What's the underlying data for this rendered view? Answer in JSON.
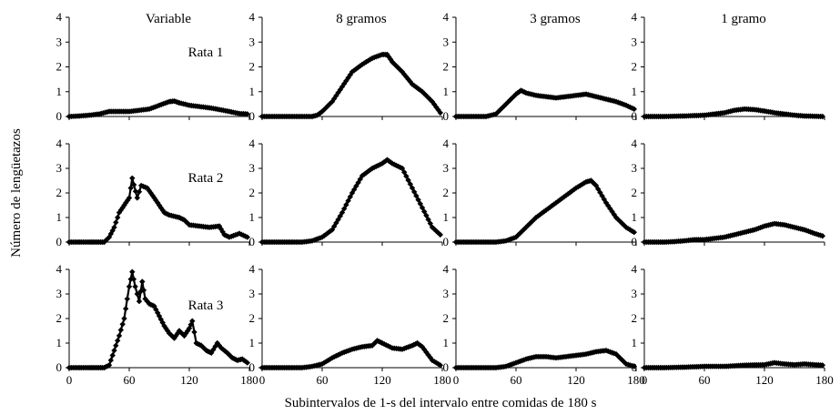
{
  "figure": {
    "ylabel": "Número de lengüetazos",
    "xlabel": "Subintervalos de 1-s del  intervalo entre comidas de 180 s",
    "columns": [
      "Variable",
      "8 gramos",
      "3 gramos",
      "1 gramo"
    ],
    "rows": [
      "Rata 1",
      "Rata 2",
      "Rata 3"
    ]
  },
  "chart_data": {
    "type": "line",
    "layout": "small-multiples 3 rows x 4 columns",
    "x_range": [
      0,
      180
    ],
    "y_range": [
      0,
      4
    ],
    "x_ticks": [
      "0",
      "60",
      "120",
      "180"
    ],
    "y_ticks": [
      "0",
      "1",
      "2",
      "3",
      "4"
    ],
    "marker": "diamond",
    "color": "#000000",
    "panels": [
      {
        "row": "Rata 1",
        "column": "Variable",
        "points": [
          [
            0,
            0
          ],
          [
            10,
            0.02
          ],
          [
            20,
            0.05
          ],
          [
            30,
            0.1
          ],
          [
            40,
            0.2
          ],
          [
            50,
            0.2
          ],
          [
            60,
            0.2
          ],
          [
            70,
            0.25
          ],
          [
            80,
            0.3
          ],
          [
            90,
            0.45
          ],
          [
            100,
            0.6
          ],
          [
            105,
            0.62
          ],
          [
            110,
            0.55
          ],
          [
            120,
            0.45
          ],
          [
            130,
            0.4
          ],
          [
            140,
            0.35
          ],
          [
            150,
            0.28
          ],
          [
            160,
            0.2
          ],
          [
            170,
            0.12
          ],
          [
            178,
            0.1
          ]
        ]
      },
      {
        "row": "Rata 1",
        "column": "8 gramos",
        "points": [
          [
            0,
            0
          ],
          [
            40,
            0
          ],
          [
            50,
            0
          ],
          [
            55,
            0.05
          ],
          [
            60,
            0.2
          ],
          [
            70,
            0.6
          ],
          [
            80,
            1.2
          ],
          [
            90,
            1.8
          ],
          [
            100,
            2.1
          ],
          [
            110,
            2.35
          ],
          [
            120,
            2.5
          ],
          [
            125,
            2.5
          ],
          [
            130,
            2.2
          ],
          [
            140,
            1.8
          ],
          [
            150,
            1.3
          ],
          [
            160,
            1.0
          ],
          [
            170,
            0.6
          ],
          [
            178,
            0.15
          ]
        ]
      },
      {
        "row": "Rata 1",
        "column": "3 gramos",
        "points": [
          [
            0,
            0
          ],
          [
            30,
            0
          ],
          [
            40,
            0.1
          ],
          [
            50,
            0.5
          ],
          [
            60,
            0.9
          ],
          [
            65,
            1.05
          ],
          [
            70,
            0.95
          ],
          [
            80,
            0.85
          ],
          [
            90,
            0.8
          ],
          [
            100,
            0.75
          ],
          [
            110,
            0.8
          ],
          [
            120,
            0.85
          ],
          [
            130,
            0.9
          ],
          [
            140,
            0.8
          ],
          [
            150,
            0.7
          ],
          [
            160,
            0.6
          ],
          [
            170,
            0.45
          ],
          [
            178,
            0.3
          ]
        ]
      },
      {
        "row": "Rata 1",
        "column": "1 gramo",
        "points": [
          [
            0,
            0
          ],
          [
            20,
            0
          ],
          [
            40,
            0.02
          ],
          [
            60,
            0.05
          ],
          [
            80,
            0.15
          ],
          [
            90,
            0.25
          ],
          [
            100,
            0.3
          ],
          [
            110,
            0.28
          ],
          [
            120,
            0.22
          ],
          [
            130,
            0.15
          ],
          [
            140,
            0.1
          ],
          [
            150,
            0.05
          ],
          [
            160,
            0.02
          ],
          [
            178,
            0
          ]
        ]
      },
      {
        "row": "Rata 2",
        "column": "Variable",
        "points": [
          [
            0,
            0
          ],
          [
            20,
            0
          ],
          [
            35,
            0
          ],
          [
            40,
            0.2
          ],
          [
            45,
            0.6
          ],
          [
            50,
            1.2
          ],
          [
            55,
            1.5
          ],
          [
            60,
            1.8
          ],
          [
            63,
            2.6
          ],
          [
            68,
            1.8
          ],
          [
            72,
            2.3
          ],
          [
            78,
            2.2
          ],
          [
            85,
            1.8
          ],
          [
            90,
            1.5
          ],
          [
            95,
            1.2
          ],
          [
            100,
            1.1
          ],
          [
            110,
            1.0
          ],
          [
            115,
            0.9
          ],
          [
            120,
            0.7
          ],
          [
            130,
            0.65
          ],
          [
            140,
            0.6
          ],
          [
            150,
            0.65
          ],
          [
            155,
            0.3
          ],
          [
            160,
            0.2
          ],
          [
            170,
            0.35
          ],
          [
            178,
            0.2
          ]
        ]
      },
      {
        "row": "Rata 2",
        "column": "8 gramos",
        "points": [
          [
            0,
            0
          ],
          [
            40,
            0
          ],
          [
            50,
            0.05
          ],
          [
            60,
            0.2
          ],
          [
            70,
            0.5
          ],
          [
            80,
            1.2
          ],
          [
            90,
            2.0
          ],
          [
            100,
            2.7
          ],
          [
            110,
            3.0
          ],
          [
            120,
            3.2
          ],
          [
            125,
            3.35
          ],
          [
            130,
            3.2
          ],
          [
            140,
            3.0
          ],
          [
            150,
            2.2
          ],
          [
            160,
            1.4
          ],
          [
            170,
            0.6
          ],
          [
            178,
            0.3
          ]
        ]
      },
      {
        "row": "Rata 2",
        "column": "3 gramos",
        "points": [
          [
            0,
            0
          ],
          [
            40,
            0
          ],
          [
            50,
            0.05
          ],
          [
            60,
            0.2
          ],
          [
            70,
            0.6
          ],
          [
            80,
            1.0
          ],
          [
            90,
            1.3
          ],
          [
            100,
            1.6
          ],
          [
            110,
            1.9
          ],
          [
            120,
            2.2
          ],
          [
            130,
            2.45
          ],
          [
            135,
            2.5
          ],
          [
            140,
            2.3
          ],
          [
            150,
            1.6
          ],
          [
            160,
            1.0
          ],
          [
            170,
            0.6
          ],
          [
            178,
            0.4
          ]
        ]
      },
      {
        "row": "Rata 2",
        "column": "1 gramo",
        "points": [
          [
            0,
            0
          ],
          [
            20,
            0
          ],
          [
            30,
            0.02
          ],
          [
            40,
            0.05
          ],
          [
            50,
            0.1
          ],
          [
            60,
            0.1
          ],
          [
            70,
            0.15
          ],
          [
            80,
            0.2
          ],
          [
            90,
            0.3
          ],
          [
            100,
            0.4
          ],
          [
            110,
            0.5
          ],
          [
            120,
            0.65
          ],
          [
            130,
            0.75
          ],
          [
            140,
            0.7
          ],
          [
            150,
            0.6
          ],
          [
            160,
            0.5
          ],
          [
            170,
            0.35
          ],
          [
            178,
            0.25
          ]
        ]
      },
      {
        "row": "Rata 3",
        "column": "Variable",
        "points": [
          [
            0,
            0
          ],
          [
            20,
            0
          ],
          [
            35,
            0
          ],
          [
            40,
            0.1
          ],
          [
            45,
            0.7
          ],
          [
            50,
            1.3
          ],
          [
            55,
            2.0
          ],
          [
            58,
            2.8
          ],
          [
            60,
            3.3
          ],
          [
            63,
            3.9
          ],
          [
            66,
            3.3
          ],
          [
            70,
            2.7
          ],
          [
            73,
            3.5
          ],
          [
            76,
            2.8
          ],
          [
            80,
            2.6
          ],
          [
            85,
            2.5
          ],
          [
            90,
            2.1
          ],
          [
            95,
            1.7
          ],
          [
            100,
            1.4
          ],
          [
            105,
            1.2
          ],
          [
            110,
            1.5
          ],
          [
            115,
            1.3
          ],
          [
            120,
            1.6
          ],
          [
            123,
            1.9
          ],
          [
            127,
            1.0
          ],
          [
            132,
            0.9
          ],
          [
            137,
            0.7
          ],
          [
            142,
            0.6
          ],
          [
            148,
            1.0
          ],
          [
            152,
            0.8
          ],
          [
            158,
            0.6
          ],
          [
            163,
            0.4
          ],
          [
            168,
            0.3
          ],
          [
            173,
            0.35
          ],
          [
            178,
            0.2
          ]
        ]
      },
      {
        "row": "Rata 3",
        "column": "8 gramos",
        "points": [
          [
            0,
            0
          ],
          [
            40,
            0
          ],
          [
            50,
            0.05
          ],
          [
            60,
            0.15
          ],
          [
            70,
            0.4
          ],
          [
            80,
            0.6
          ],
          [
            90,
            0.75
          ],
          [
            100,
            0.85
          ],
          [
            110,
            0.9
          ],
          [
            115,
            1.1
          ],
          [
            120,
            1.0
          ],
          [
            130,
            0.8
          ],
          [
            140,
            0.75
          ],
          [
            150,
            0.9
          ],
          [
            155,
            1.0
          ],
          [
            160,
            0.85
          ],
          [
            170,
            0.3
          ],
          [
            178,
            0.1
          ]
        ]
      },
      {
        "row": "Rata 3",
        "column": "3 gramos",
        "points": [
          [
            0,
            0
          ],
          [
            40,
            0
          ],
          [
            50,
            0.05
          ],
          [
            60,
            0.2
          ],
          [
            70,
            0.35
          ],
          [
            80,
            0.45
          ],
          [
            90,
            0.45
          ],
          [
            100,
            0.4
          ],
          [
            110,
            0.45
          ],
          [
            120,
            0.5
          ],
          [
            130,
            0.55
          ],
          [
            140,
            0.65
          ],
          [
            150,
            0.7
          ],
          [
            160,
            0.55
          ],
          [
            170,
            0.15
          ],
          [
            178,
            0.05
          ]
        ]
      },
      {
        "row": "Rata 3",
        "column": "1 gramo",
        "points": [
          [
            0,
            0
          ],
          [
            20,
            0
          ],
          [
            40,
            0.02
          ],
          [
            60,
            0.05
          ],
          [
            80,
            0.05
          ],
          [
            100,
            0.1
          ],
          [
            120,
            0.12
          ],
          [
            130,
            0.2
          ],
          [
            140,
            0.15
          ],
          [
            150,
            0.12
          ],
          [
            160,
            0.15
          ],
          [
            170,
            0.12
          ],
          [
            178,
            0.1
          ]
        ]
      }
    ]
  }
}
